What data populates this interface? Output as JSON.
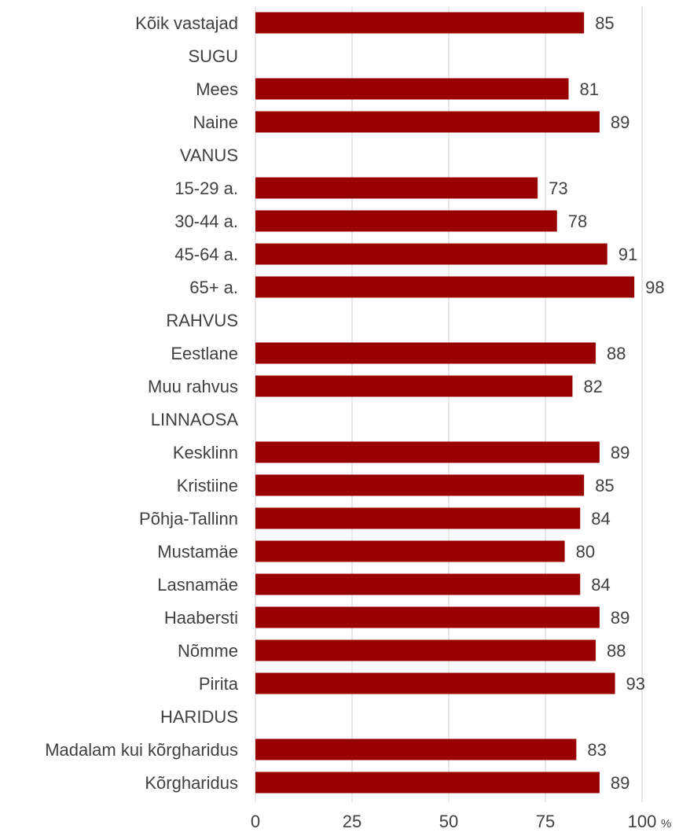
{
  "chart_data": {
    "type": "bar",
    "orientation": "horizontal",
    "categories": [
      "Kõik vastajad",
      "SUGU",
      "Mees",
      "Naine",
      "VANUS",
      "15-29 a.",
      "30-44 a.",
      "45-64 a.",
      "65+ a.",
      "RAHVUS",
      "Eestlane",
      "Muu rahvus",
      "LINNAOSA",
      "Kesklinn",
      "Kristiine",
      "Põhja-Tallinn",
      "Mustamäe",
      "Lasnamäe",
      "Haabersti",
      "Nõmme",
      "Pirita",
      "HARIDUS",
      "Madalam kui kõrgharidus",
      "Kõrgharidus"
    ],
    "values": [
      85,
      null,
      81,
      89,
      null,
      73,
      78,
      91,
      98,
      null,
      88,
      82,
      null,
      89,
      85,
      84,
      80,
      84,
      89,
      88,
      93,
      null,
      83,
      89
    ],
    "x_ticks": [
      "0",
      "25",
      "50",
      "75",
      "100"
    ],
    "x_unit": "%",
    "xlim": [
      0,
      100
    ],
    "grid": "vertical",
    "bar_color": "#990000",
    "text_color": "#404040",
    "grid_color": "#d9d9d9"
  }
}
